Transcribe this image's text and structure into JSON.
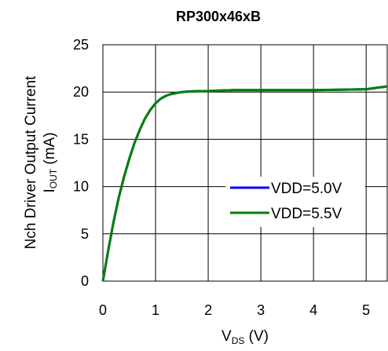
{
  "chart_data": {
    "type": "line",
    "title": "RP300x46xB",
    "xlabel_main": "V",
    "xlabel_sub": "DS",
    "xlabel_unit": " (V)",
    "ylabel_line1": "Nch Driver Output Current",
    "ylabel_main": "I",
    "ylabel_sub": "OUT",
    "ylabel_unit": " (mA)",
    "xlim": [
      0,
      5.4
    ],
    "ylim": [
      0,
      25
    ],
    "xticks": [
      0,
      1,
      2,
      3,
      4,
      5
    ],
    "yticks": [
      0,
      5,
      10,
      15,
      20,
      25
    ],
    "grid": true,
    "legend_position": "center-right",
    "series": [
      {
        "name": "VDD=5.0V",
        "color": "#0000ff",
        "x": [
          0,
          0.1,
          0.2,
          0.3,
          0.4,
          0.5,
          0.6,
          0.7,
          0.8,
          0.9,
          1.0,
          1.1,
          1.2,
          1.3,
          1.4,
          1.5,
          1.6,
          1.8,
          2.0,
          2.2,
          2.5,
          3.0,
          3.5,
          4.0,
          4.5,
          5.0,
          5.4
        ],
        "y": [
          0,
          3.2,
          6.2,
          8.8,
          11.0,
          12.9,
          14.6,
          16.0,
          17.2,
          18.1,
          18.8,
          19.3,
          19.6,
          19.8,
          19.9,
          20.0,
          20.05,
          20.1,
          20.1,
          20.15,
          20.2,
          20.2,
          20.2,
          20.2,
          20.25,
          20.3,
          20.6
        ]
      },
      {
        "name": "VDD=5.5V",
        "color": "#008000",
        "x": [
          0,
          0.1,
          0.2,
          0.3,
          0.4,
          0.5,
          0.6,
          0.7,
          0.8,
          0.9,
          1.0,
          1.1,
          1.2,
          1.3,
          1.4,
          1.5,
          1.6,
          1.8,
          2.0,
          2.2,
          2.5,
          3.0,
          3.5,
          4.0,
          4.5,
          5.0,
          5.4
        ],
        "y": [
          0,
          3.2,
          6.2,
          8.8,
          11.0,
          12.9,
          14.6,
          16.0,
          17.2,
          18.1,
          18.8,
          19.3,
          19.6,
          19.8,
          19.9,
          20.0,
          20.05,
          20.1,
          20.1,
          20.15,
          20.2,
          20.2,
          20.2,
          20.2,
          20.25,
          20.3,
          20.6
        ]
      }
    ]
  }
}
